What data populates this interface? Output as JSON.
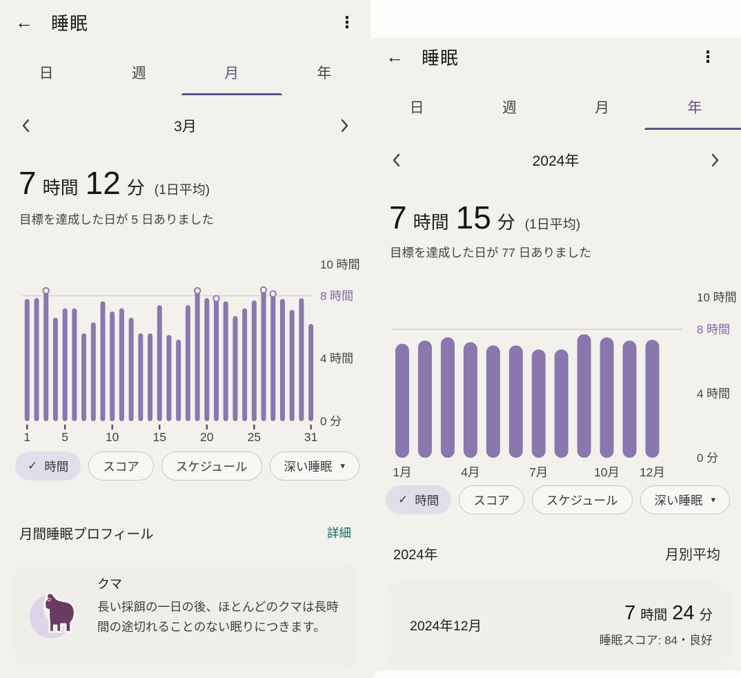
{
  "colors": {
    "accent_purple": "#5c4f8e",
    "bar_purple": "#8a77ae",
    "grid_line": "#dcd9d2",
    "axis_text": "#45433e",
    "axis_accent": "#7b69ae",
    "tick_mark": "#55524c",
    "link_teal": "#0c6f62",
    "chip_selected_bg": "#e1deea",
    "page_bg": "#f3f1ec",
    "card_bg": "#f0eee8",
    "surface_white": "#fcfcfa"
  },
  "left_panel": {
    "header": {
      "title": "睡眠"
    },
    "tabs": [
      {
        "label": "日",
        "active": false
      },
      {
        "label": "週",
        "active": false
      },
      {
        "label": "月",
        "active": true
      },
      {
        "label": "年",
        "active": false
      }
    ],
    "period": {
      "label": "3月"
    },
    "summary": {
      "hours": "7",
      "hours_unit": "時間",
      "minutes": "12",
      "minutes_unit": "分",
      "qualifier": "(1日平均)",
      "goal_text": "目標を達成した日が 5 日ありました"
    },
    "chart_data": {
      "type": "bar",
      "x_unit": "day-of-month",
      "categories": [
        1,
        2,
        3,
        4,
        5,
        6,
        7,
        8,
        9,
        10,
        11,
        12,
        13,
        14,
        15,
        16,
        17,
        18,
        19,
        20,
        21,
        22,
        23,
        24,
        25,
        26,
        27,
        28,
        29,
        30,
        31
      ],
      "values": [
        7.8,
        7.85,
        8.5,
        6.6,
        7.2,
        7.2,
        5.6,
        6.3,
        7.65,
        7.0,
        7.2,
        6.6,
        5.6,
        5.6,
        7.4,
        5.5,
        5.2,
        7.4,
        8.5,
        7.85,
        8.0,
        7.65,
        6.7,
        7.2,
        7.7,
        8.55,
        8.3,
        7.8,
        7.1,
        7.85,
        6.2
      ],
      "value_unit": "hours",
      "goal_line": 8,
      "goal_days": [
        3,
        19,
        21,
        26,
        27
      ],
      "ylim": [
        0,
        10
      ],
      "yticks": [
        {
          "v": 0,
          "label": "0 分"
        },
        {
          "v": 4,
          "label": "4 時間"
        },
        {
          "v": 8,
          "label": "8 時間",
          "accent": true
        },
        {
          "v": 10,
          "label": "10 時間"
        }
      ],
      "xtick_labels": [
        {
          "at": 1,
          "label": "1"
        },
        {
          "at": 5,
          "label": "5"
        },
        {
          "at": 10,
          "label": "10"
        },
        {
          "at": 15,
          "label": "15"
        },
        {
          "at": 20,
          "label": "20"
        },
        {
          "at": 25,
          "label": "25"
        },
        {
          "at": 31,
          "label": "31"
        }
      ],
      "legend": "off",
      "grid": "goal-line-only"
    },
    "chips": [
      {
        "label": "時間",
        "selected": true
      },
      {
        "label": "スコア",
        "selected": false
      },
      {
        "label": "スケジュール",
        "selected": false
      },
      {
        "label": "深い睡眠",
        "selected": false,
        "dropdown": true
      }
    ],
    "profile_section": {
      "title": "月間睡眠プロフィール",
      "link": "詳細"
    },
    "profile_card": {
      "animal": "クマ",
      "description": "長い採餌の一日の後、ほとんどのクマは長時間の途切れることのない眠りにつきます。"
    }
  },
  "right_panel": {
    "header": {
      "title": "睡眠"
    },
    "tabs": [
      {
        "label": "日",
        "active": false
      },
      {
        "label": "週",
        "active": false
      },
      {
        "label": "月",
        "active": false
      },
      {
        "label": "年",
        "active": true
      }
    ],
    "period": {
      "label": "2024年"
    },
    "summary": {
      "hours": "7",
      "hours_unit": "時間",
      "minutes": "15",
      "minutes_unit": "分",
      "qualifier": "(1日平均)",
      "goal_text": "目標を達成した日が 77 日ありました"
    },
    "chart_data": {
      "type": "bar",
      "x_unit": "month",
      "categories": [
        "1月",
        "2月",
        "3月",
        "4月",
        "5月",
        "6月",
        "7月",
        "8月",
        "9月",
        "10月",
        "11月",
        "12月"
      ],
      "values": [
        7.1,
        7.3,
        7.5,
        7.2,
        7.0,
        7.0,
        6.75,
        6.75,
        7.7,
        7.5,
        7.3,
        7.35
      ],
      "value_unit": "hours",
      "goal_line": 8,
      "goal_days": [],
      "ylim": [
        0,
        10
      ],
      "yticks": [
        {
          "v": 0,
          "label": "0 分"
        },
        {
          "v": 4,
          "label": "4 時間"
        },
        {
          "v": 8,
          "label": "8 時間",
          "accent": true
        },
        {
          "v": 10,
          "label": "10 時間"
        }
      ],
      "xtick_labels": [
        {
          "at": 1,
          "label": "1月"
        },
        {
          "at": 4,
          "label": "4月"
        },
        {
          "at": 7,
          "label": "7月"
        },
        {
          "at": 10,
          "label": "10月"
        },
        {
          "at": 12,
          "label": "12月"
        }
      ],
      "legend": "off",
      "grid": "goal-line-only"
    },
    "chips": [
      {
        "label": "時間",
        "selected": true
      },
      {
        "label": "スコア",
        "selected": false
      },
      {
        "label": "スケジュール",
        "selected": false
      },
      {
        "label": "深い睡眠",
        "selected": false,
        "dropdown": true
      }
    ],
    "summary_row": {
      "year": "2024年",
      "caption": "月別平均"
    },
    "month_card": {
      "month": "2024年12月",
      "hours": "7",
      "hours_unit": "時間",
      "minutes": "24",
      "minutes_unit": "分",
      "score_text": "睡眠スコア: 84・良好"
    }
  }
}
